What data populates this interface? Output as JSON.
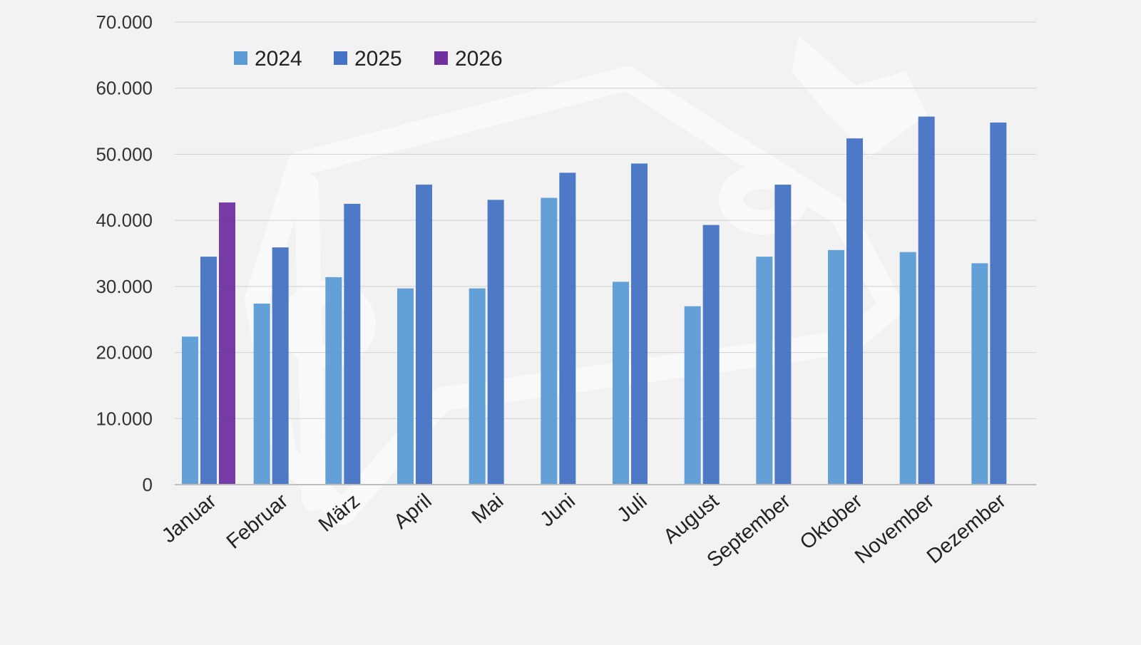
{
  "chart_data": {
    "type": "bar",
    "categories": [
      "Januar",
      "Februar",
      "März",
      "April",
      "Mai",
      "Juni",
      "Juli",
      "August",
      "September",
      "Oktober",
      "November",
      "Dezember"
    ],
    "series": [
      {
        "name": "2024",
        "color": "#5b9bd5",
        "values": [
          22400,
          27400,
          31400,
          29700,
          29700,
          43400,
          30700,
          27000,
          34500,
          35500,
          35200,
          33500
        ]
      },
      {
        "name": "2025",
        "color": "#4472c4",
        "values": [
          34500,
          35900,
          42500,
          45400,
          43100,
          47200,
          48600,
          39300,
          45400,
          52400,
          55700,
          54800
        ]
      },
      {
        "name": "2026",
        "color": "#7030a0",
        "values": [
          42700,
          null,
          null,
          null,
          null,
          null,
          null,
          null,
          null,
          null,
          null,
          null
        ]
      }
    ],
    "y_ticks": [
      "0",
      "10.000",
      "20.000",
      "30.000",
      "40.000",
      "50.000",
      "60.000",
      "70.000"
    ],
    "ylim": [
      0,
      70000
    ],
    "y_step": 10000,
    "legend_position": "top-left",
    "title": "",
    "xlabel": "",
    "ylabel": ""
  }
}
